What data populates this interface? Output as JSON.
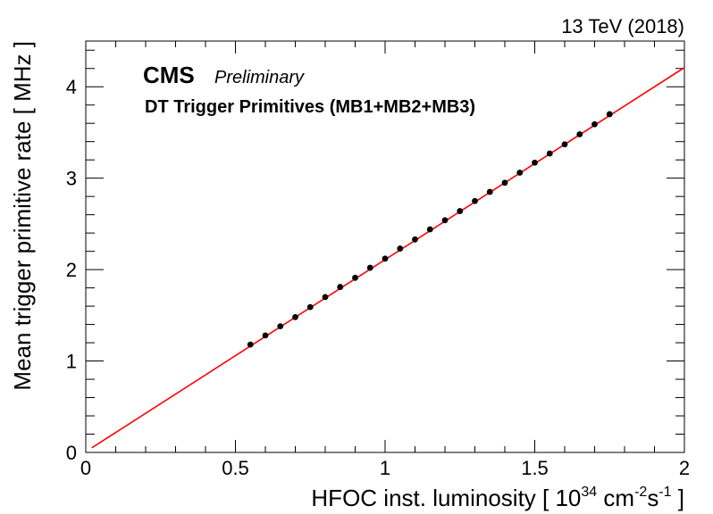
{
  "chart_data": {
    "type": "scatter",
    "energy_label": "13 TeV (2018)",
    "experiment_label": "CMS",
    "status_label": "Preliminary",
    "subtitle": "DT Trigger Primitives (MB1+MB2+MB3)",
    "xlabel": "HFOC inst. luminosity [ 10",
    "xlabel_sup1": "34",
    "xlabel_mid": " cm",
    "xlabel_sup2": "-2",
    "xlabel_mid2": "s",
    "xlabel_sup3": "-1",
    "xlabel_end": " ]",
    "ylabel": "Mean trigger primitive rate [ MHz ]",
    "xlim": [
      0,
      2
    ],
    "ylim": [
      0,
      4.5
    ],
    "x_ticks": [
      {
        "value": 0,
        "label": "0"
      },
      {
        "value": 0.5,
        "label": "0.5"
      },
      {
        "value": 1,
        "label": "1"
      },
      {
        "value": 1.5,
        "label": "1.5"
      },
      {
        "value": 2,
        "label": "2"
      }
    ],
    "y_ticks": [
      {
        "value": 0,
        "label": "0"
      },
      {
        "value": 1,
        "label": "1"
      },
      {
        "value": 2,
        "label": "2"
      },
      {
        "value": 3,
        "label": "3"
      },
      {
        "value": 4,
        "label": "4"
      }
    ],
    "grid": false,
    "marker_color": "#000000",
    "fit_color": "#ff0000",
    "fit_line": {
      "x": [
        0.02,
        2.0
      ],
      "y": [
        0.05,
        4.21
      ]
    },
    "series": [
      {
        "x": [
          0.55,
          0.6,
          0.65,
          0.7,
          0.75,
          0.8,
          0.85,
          0.9,
          0.95,
          1.0,
          1.05,
          1.1,
          1.15,
          1.2,
          1.25,
          1.3,
          1.35,
          1.4,
          1.45,
          1.5,
          1.55,
          1.6,
          1.65,
          1.7,
          1.75
        ],
        "y": [
          1.18,
          1.28,
          1.38,
          1.48,
          1.59,
          1.7,
          1.81,
          1.91,
          2.02,
          2.12,
          2.23,
          2.33,
          2.44,
          2.54,
          2.64,
          2.75,
          2.85,
          2.95,
          3.06,
          3.17,
          3.27,
          3.37,
          3.48,
          3.59,
          3.7
        ]
      }
    ]
  }
}
